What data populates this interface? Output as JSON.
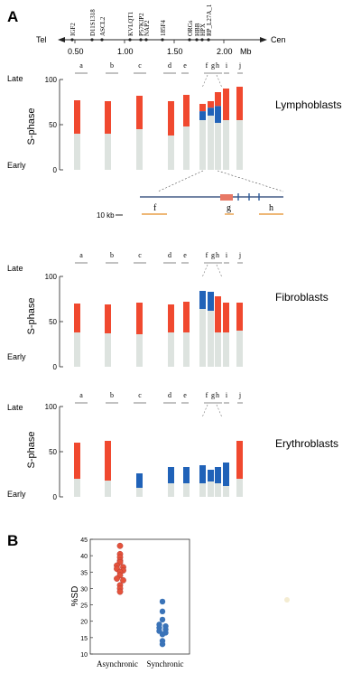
{
  "panel_a_label": "A",
  "panel_b_label": "B",
  "chrom_map": {
    "left_label": "Tel",
    "right_label": "Cen",
    "genes": [
      "IGF2",
      "D11S1318",
      "ASCL2",
      "KVLQT1",
      "P57KIP2",
      "NAP2",
      "185F4",
      "ORGs",
      "HBB",
      "HPX",
      "RP_L27A_1"
    ],
    "scale_ticks": [
      "0.50",
      "1.00",
      "1.50",
      "2.00"
    ],
    "scale_unit": "Mb"
  },
  "zoom": {
    "scale_label": "10 kb",
    "probe_labels": [
      "f",
      "g",
      "h"
    ]
  },
  "axis": {
    "late_label": "Late",
    "early_label": "Early",
    "ylabel": "S-phase"
  },
  "colors": {
    "red": "#f0492f",
    "blue": "#2062b8",
    "gray": "#dde3df",
    "orange": "#e8a04a",
    "red_dot": "#e4533b",
    "blue_dot": "#3a73b8"
  },
  "chart_data": [
    {
      "type": "bar",
      "title": "Lymphoblasts",
      "ylim": [
        0,
        100
      ],
      "ytick_labels": [
        "100",
        "50",
        "0"
      ],
      "categories": [
        "a",
        "b",
        "c",
        "d",
        "e",
        "f",
        "g",
        "h",
        "i",
        "j"
      ],
      "series": [
        {
          "color": "red",
          "bars": [
            [
              40,
              77
            ],
            [
              40,
              76
            ],
            [
              45,
              82
            ],
            [
              38,
              76
            ],
            [
              48,
              83
            ],
            [
              55,
              73
            ],
            [
              60,
              76
            ],
            [
              52,
              86
            ],
            [
              55,
              90
            ],
            [
              55,
              92
            ]
          ]
        },
        {
          "color": "blue",
          "bars": [
            [
              0,
              0
            ],
            [
              0,
              0
            ],
            [
              0,
              0
            ],
            [
              0,
              0
            ],
            [
              0,
              0
            ],
            [
              55,
              73
            ],
            [
              60,
              76
            ],
            [
              52,
              86
            ],
            [
              0,
              0
            ],
            [
              0,
              0
            ]
          ]
        }
      ]
    },
    {
      "type": "bar",
      "title": "Fibroblasts",
      "ylim": [
        0,
        100
      ],
      "ytick_labels": [
        "100",
        "50",
        "0"
      ],
      "categories": [
        "a",
        "b",
        "c",
        "d",
        "e",
        "f",
        "g",
        "h",
        "i",
        "j"
      ],
      "series": [
        {
          "color": "red",
          "bars": [
            [
              38,
              70
            ],
            [
              37,
              69
            ],
            [
              36,
              71
            ],
            [
              38,
              69
            ],
            [
              38,
              72
            ],
            [
              0,
              0
            ],
            [
              0,
              0
            ],
            [
              38,
              78
            ],
            [
              38,
              71
            ],
            [
              40,
              71
            ]
          ]
        },
        {
          "color": "blue",
          "bars": [
            [
              0,
              0
            ],
            [
              0,
              0
            ],
            [
              0,
              0
            ],
            [
              0,
              0
            ],
            [
              0,
              0
            ],
            [
              64,
              84
            ],
            [
              62,
              83
            ],
            [
              0,
              0
            ],
            [
              0,
              0
            ],
            [
              0,
              0
            ]
          ]
        }
      ]
    },
    {
      "type": "bar",
      "title": "Erythroblasts",
      "ylim": [
        0,
        100
      ],
      "ytick_labels": [
        "100",
        "50",
        "0"
      ],
      "categories": [
        "a",
        "b",
        "c",
        "d",
        "e",
        "f",
        "g",
        "h",
        "i",
        "j"
      ],
      "series": [
        {
          "color": "red",
          "bars": [
            [
              20,
              60
            ],
            [
              18,
              62
            ],
            [
              0,
              0
            ],
            [
              0,
              0
            ],
            [
              0,
              0
            ],
            [
              0,
              0
            ],
            [
              0,
              0
            ],
            [
              0,
              0
            ],
            [
              0,
              0
            ],
            [
              20,
              62
            ]
          ]
        },
        {
          "color": "blue",
          "bars": [
            [
              0,
              0
            ],
            [
              0,
              0
            ],
            [
              10,
              26
            ],
            [
              15,
              33
            ],
            [
              15,
              33
            ],
            [
              15,
              35
            ],
            [
              17,
              30
            ],
            [
              15,
              33
            ],
            [
              12,
              38
            ],
            [
              0,
              0
            ]
          ]
        }
      ]
    },
    {
      "type": "scatter",
      "ylabel": "%SD",
      "ylim": [
        10,
        45
      ],
      "yticks": [
        10,
        15,
        20,
        25,
        30,
        35,
        40,
        45
      ],
      "categories": [
        "Asynchronic",
        "Synchronic"
      ],
      "series": [
        {
          "name": "Asynchronic",
          "color": "red_dot",
          "y": [
            43,
            40.5,
            39.5,
            38.5,
            38,
            37,
            36.5,
            36,
            35.5,
            35,
            34,
            33,
            32.5,
            31,
            30,
            29
          ]
        },
        {
          "name": "Synchronic",
          "color": "blue_dot",
          "y": [
            26,
            23,
            20.5,
            19,
            18.5,
            18,
            17.5,
            17,
            16.5,
            16,
            14,
            13
          ]
        }
      ]
    }
  ]
}
